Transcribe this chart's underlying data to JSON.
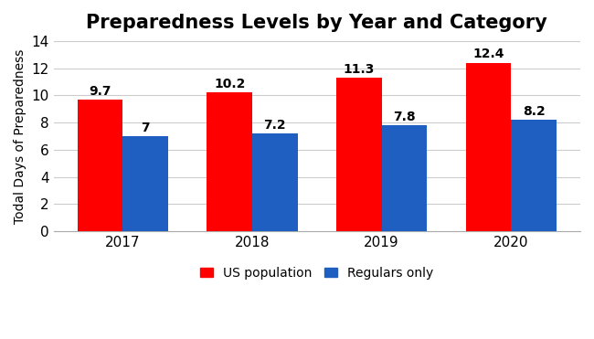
{
  "title": "Preparedness Levels by Year and Category",
  "ylabel": "Todal Days of Preparedness",
  "years": [
    2017,
    2018,
    2019,
    2020
  ],
  "us_population": [
    9.7,
    10.2,
    11.3,
    12.4
  ],
  "us_labels": [
    "9.7",
    "10.2",
    "11.3",
    "12.4"
  ],
  "regulars_only": [
    7.0,
    7.2,
    7.8,
    8.2
  ],
  "reg_labels": [
    "7",
    "7.2",
    "7.8",
    "8.2"
  ],
  "us_color": "#ff0000",
  "reg_color": "#1f5fc1",
  "ylim": [
    0,
    14
  ],
  "yticks": [
    0,
    2,
    4,
    6,
    8,
    10,
    12,
    14
  ],
  "bar_width": 0.35,
  "legend_labels": [
    "US population",
    "Regulars only"
  ],
  "title_fontsize": 15,
  "label_fontsize": 10,
  "tick_fontsize": 11,
  "annot_fontsize": 10,
  "background_color": "#ffffff"
}
